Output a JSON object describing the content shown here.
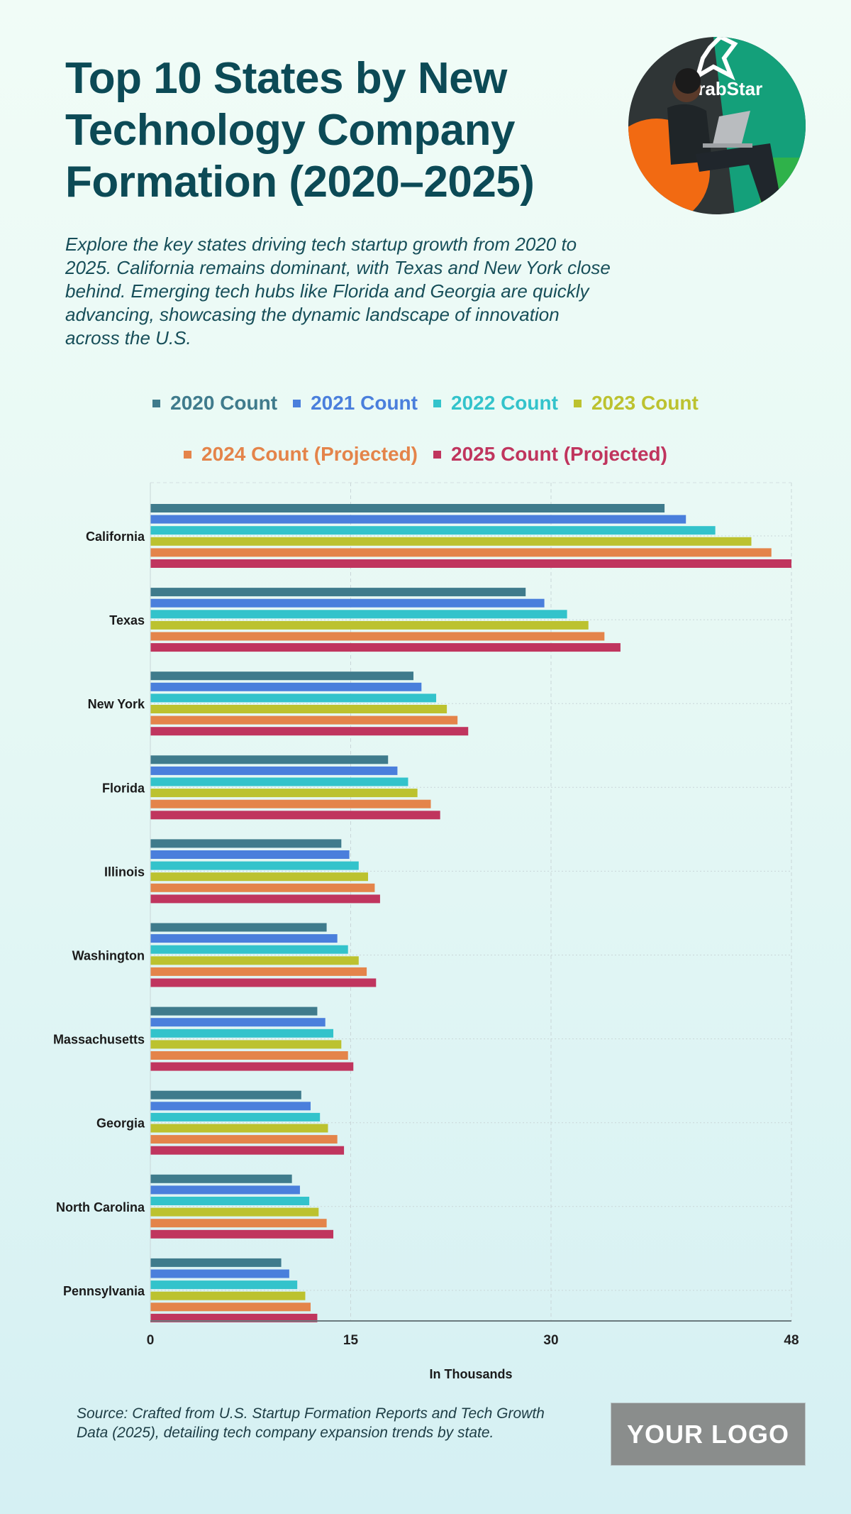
{
  "header": {
    "title": "Top 10 States by New Technology Company Formation (2020–2025)",
    "subtitle": "Explore the key states driving tech startup growth from 2020 to 2025. California remains dominant, with Texas and New York close behind. Emerging tech hubs like Florida and Georgia are quickly advancing, showcasing the dynamic landscape of innovation across the U.S.",
    "photo_logo_text": "GrabStar"
  },
  "chart_data": {
    "type": "bar",
    "orientation": "horizontal",
    "categories": [
      "California",
      "Texas",
      "New York",
      "Florida",
      "Illinois",
      "Washington",
      "Massachusetts",
      "Georgia",
      "North Carolina",
      "Pennsylvania"
    ],
    "series": [
      {
        "name": "2020 Count",
        "color": "#3f7b8c",
        "values": [
          38.5,
          28.1,
          19.7,
          17.8,
          14.3,
          13.2,
          12.5,
          11.3,
          10.6,
          9.8
        ]
      },
      {
        "name": "2021 Count",
        "color": "#4a7fdc",
        "values": [
          40.1,
          29.5,
          20.3,
          18.5,
          14.9,
          14.0,
          13.1,
          12.0,
          11.2,
          10.4
        ]
      },
      {
        "name": "2022 Count",
        "color": "#33c3cb",
        "values": [
          42.3,
          31.2,
          21.4,
          19.3,
          15.6,
          14.8,
          13.7,
          12.7,
          11.9,
          11.0
        ]
      },
      {
        "name": "2023 Count",
        "color": "#bcc22f",
        "values": [
          45.0,
          32.8,
          22.2,
          20.0,
          16.3,
          15.6,
          14.3,
          13.3,
          12.6,
          11.6
        ]
      },
      {
        "name": "2024 Count (Projected)",
        "color": "#e4844a",
        "values": [
          46.5,
          34.0,
          23.0,
          21.0,
          16.8,
          16.2,
          14.8,
          14.0,
          13.2,
          12.0
        ]
      },
      {
        "name": "2025 Count (Projected)",
        "color": "#c0355e",
        "values": [
          48.0,
          35.2,
          23.8,
          21.7,
          17.2,
          16.9,
          15.2,
          14.5,
          13.7,
          12.5
        ]
      }
    ],
    "xlabel": "In Thousands",
    "xlim": [
      0,
      48
    ],
    "xticks": [
      "0",
      "15",
      "30",
      "48"
    ],
    "grid": true,
    "legend_placement": "top"
  },
  "footer": {
    "source": "Source: Crafted from U.S. Startup Formation Reports and Tech Growth Data (2025), detailing tech company expansion trends by state.",
    "logo": "YOUR LOGO"
  }
}
